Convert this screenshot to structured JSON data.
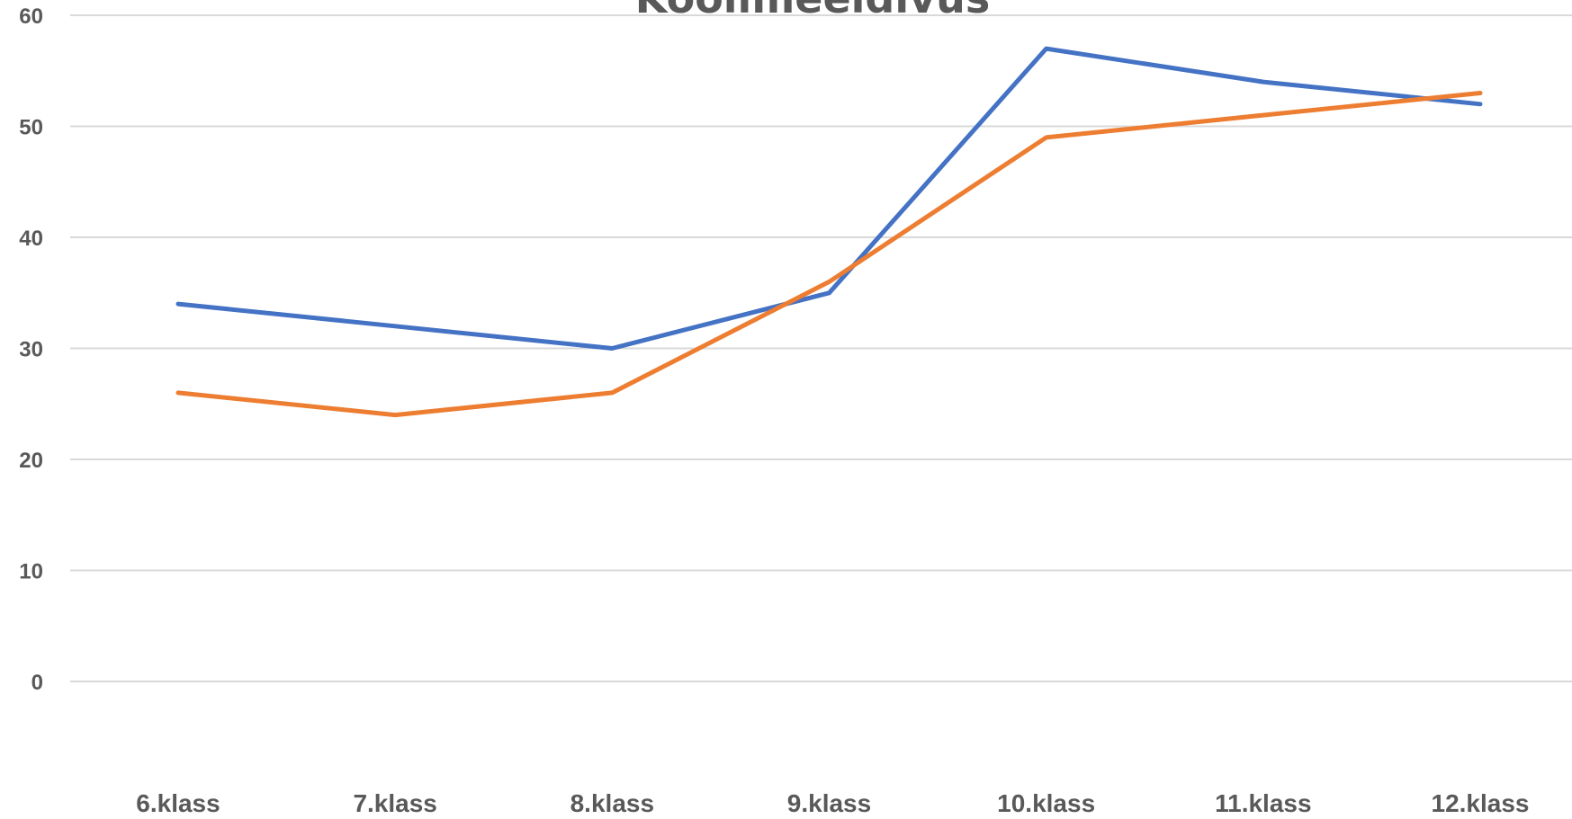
{
  "chart_data": {
    "type": "line",
    "title": "Koolimeeldivus",
    "categories": [
      "6.klass",
      "7.klass",
      "8.klass",
      "9.klass",
      "10.klass",
      "11.klass",
      "12.klass"
    ],
    "series": [
      {
        "values": [
          34,
          32,
          30,
          35,
          57,
          54,
          52
        ],
        "color": "#4472c4"
      },
      {
        "values": [
          26,
          24,
          26,
          36,
          49,
          51,
          53
        ],
        "color": "#ed7d31"
      }
    ],
    "yticks": [
      "0",
      "10",
      "20",
      "30",
      "40",
      "50",
      "60"
    ],
    "ylim": [
      0,
      60
    ],
    "grid": true,
    "legend": "none"
  }
}
